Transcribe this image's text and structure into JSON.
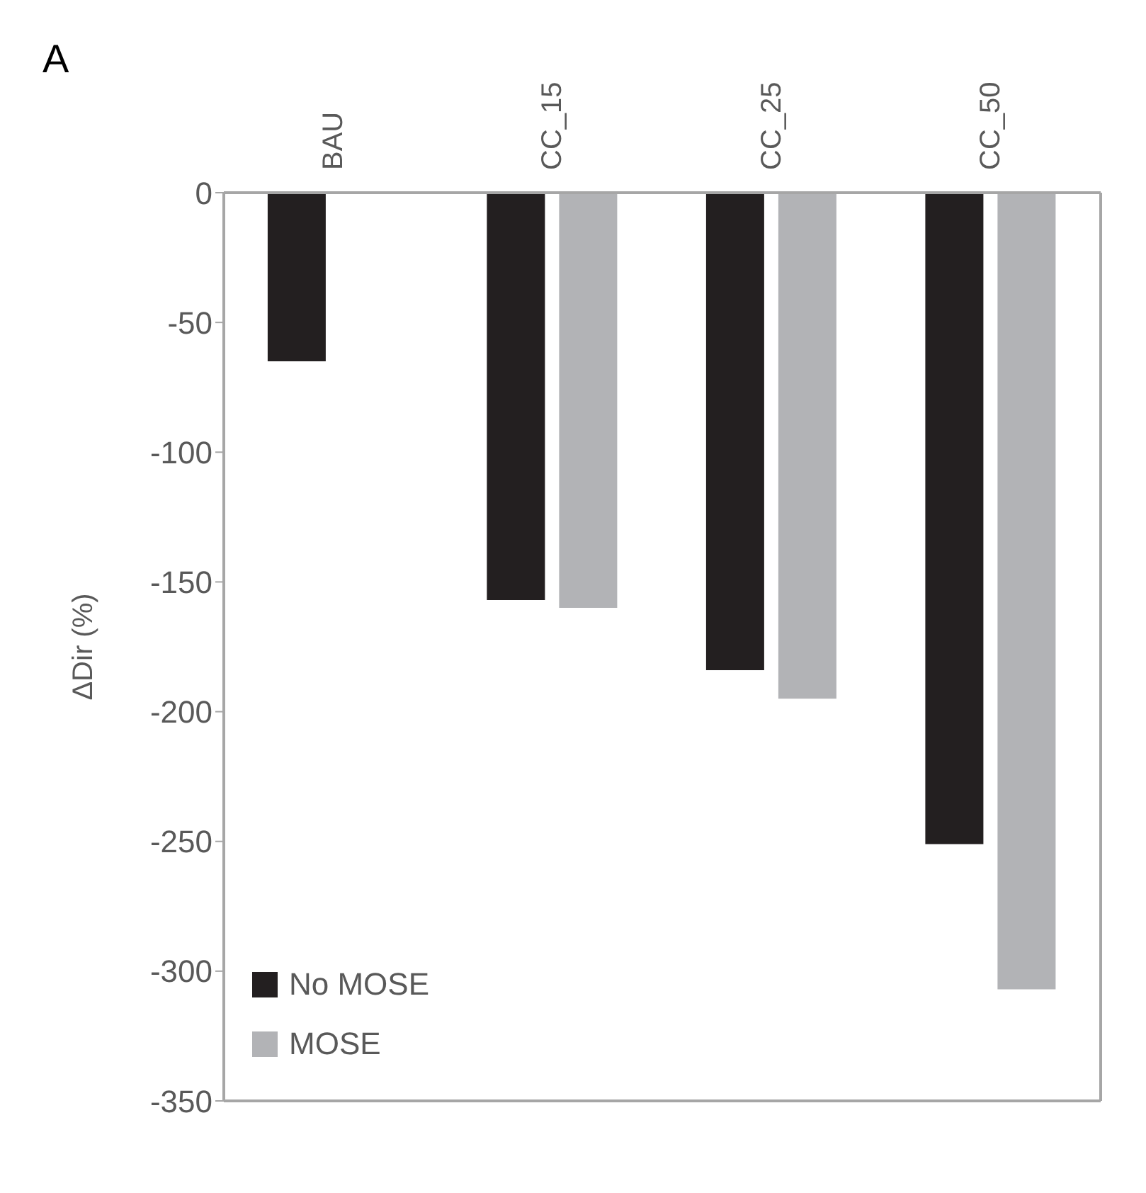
{
  "chart_data": {
    "type": "bar",
    "title": "A",
    "ylabel": "ΔDir (%)",
    "categories": [
      "BAU",
      "CC_15",
      "CC_25",
      "CC_50"
    ],
    "series": [
      {
        "name": "No MOSE",
        "color": "#231f20",
        "values": [
          -65,
          -157,
          -184,
          -251
        ]
      },
      {
        "name": "MOSE",
        "color": "#b2b3b6",
        "values": [
          null,
          -160,
          -195,
          -307
        ]
      }
    ],
    "ylim": [
      -350,
      0
    ],
    "yticks": [
      0,
      -50,
      -100,
      -150,
      -200,
      -250,
      -300,
      -350
    ],
    "grid": false,
    "legend": "bottom left"
  }
}
